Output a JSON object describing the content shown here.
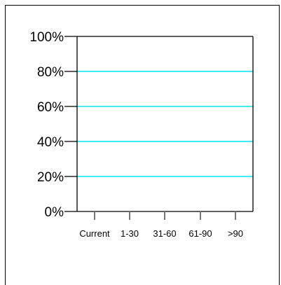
{
  "chart_data": {
    "type": "bar",
    "categories": [
      "Current",
      "1-30",
      "31-60",
      "61-90",
      ">90"
    ],
    "series": [
      {
        "values": [
          0,
          0,
          0,
          0,
          0
        ]
      }
    ],
    "title": "",
    "xlabel": "",
    "ylabel": "",
    "ylim": [
      0,
      100
    ],
    "y_ticks": [
      "0%",
      "20%",
      "40%",
      "60%",
      "80%",
      "100%"
    ],
    "y_tick_values": [
      0,
      20,
      40,
      60,
      80,
      100
    ],
    "grid": true,
    "grid_color": "#00e5ee",
    "axis_color": "#000000"
  }
}
